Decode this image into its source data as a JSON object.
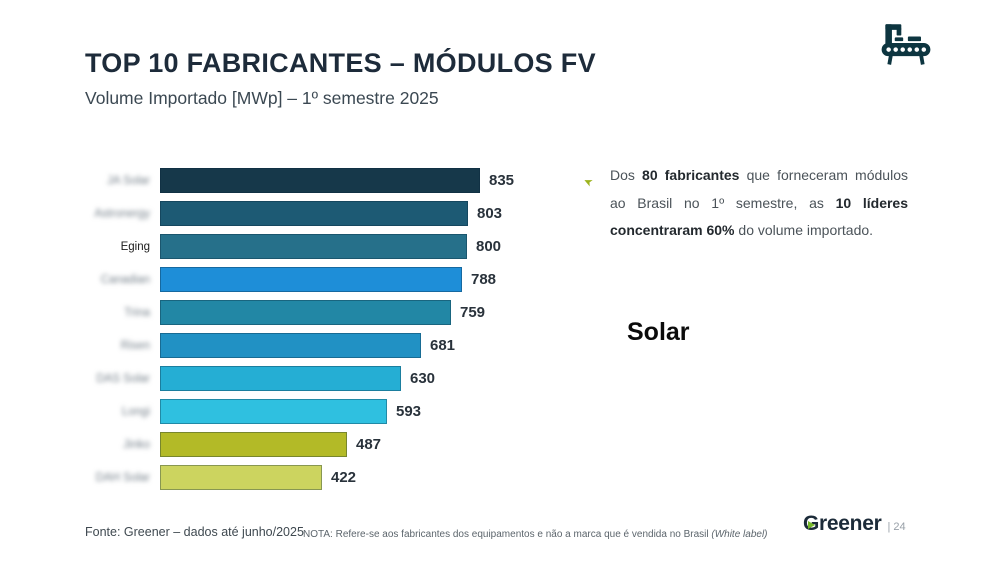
{
  "header": {
    "title": "TOP 10 FABRICANTES – MÓDULOS FV",
    "subtitle": "Volume Importado [MWp] – 1º semestre 2025"
  },
  "chart_data": {
    "type": "bar",
    "orientation": "horizontal",
    "title": "TOP 10 FABRICANTES – MÓDULOS FV",
    "subtitle": "Volume Importado [MWp] – 1º semestre 2025",
    "unit": "MWp",
    "xlim": [
      0,
      900
    ],
    "grid": false,
    "legend": "none",
    "categories": [
      "JA Solar",
      "Astronergy",
      "Eging",
      "Canadian",
      "Trina",
      "Risen",
      "DAS Solar",
      "Longi",
      "Jinko",
      "DAH Solar"
    ],
    "values": [
      835,
      803,
      800,
      788,
      759,
      681,
      630,
      593,
      487,
      422
    ],
    "labels_blurred": [
      true,
      true,
      false,
      true,
      true,
      true,
      true,
      true,
      true,
      true
    ],
    "bar_colors": [
      "#16384a",
      "#1d5a74",
      "#26708a",
      "#1e8ed8",
      "#2287a5",
      "#2191c4",
      "#25aed4",
      "#2fc0e0",
      "#b3ba27",
      "#ccd45f"
    ]
  },
  "annotation": {
    "bullet_icon": "arrow-bullet",
    "bullet_color": "#9cb31d",
    "segments": [
      {
        "text": "Dos ",
        "bold": false
      },
      {
        "text": "80 fabricantes",
        "bold": true
      },
      {
        "text": " que forneceram módulos ao Brasil no 1º semestre, as ",
        "bold": false
      },
      {
        "text": "10 líderes concentraram 60%",
        "bold": true
      },
      {
        "text": " do volume importado.",
        "bold": false
      }
    ]
  },
  "overlay": {
    "solar_text": "Solar"
  },
  "footer": {
    "source": "Fonte: Greener – dados até junho/2025",
    "note_prefix": "NOTA: Refere-se aos fabricantes dos equipamentos e não a marca que é vendida no Brasil ",
    "note_italic": "(White label)",
    "logo_text": "Greener",
    "page_number": "| 24"
  },
  "colors": {
    "title": "#1d2b3a",
    "icon": "#0d3540",
    "logo_accent": "#76b82a",
    "background": "#ffffff"
  }
}
